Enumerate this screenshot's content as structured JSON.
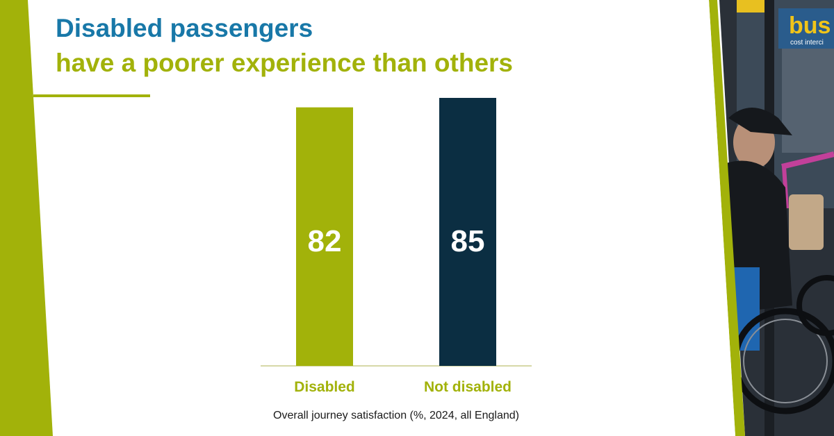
{
  "header": {
    "title": "Disabled passengers",
    "subtitle": "have a poorer experience than others"
  },
  "colors": {
    "accent_green": "#a2b20a",
    "title_blue": "#1878a8",
    "navy": "#0b2e42"
  },
  "photo": {
    "description_icon": "wheelchair-user-photo",
    "sign_text": "bus",
    "sign_subtext": "cost interci"
  },
  "chart_data": {
    "type": "bar",
    "categories": [
      "Disabled",
      "Not disabled"
    ],
    "values": [
      82,
      85
    ],
    "data_labels": [
      "82",
      "85"
    ],
    "colors": [
      "#a2b20a",
      "#0b2e42"
    ],
    "xlabel": "Overall journey satisfaction (%, 2024, all England)",
    "ylabel": "",
    "ylim": [
      0,
      85
    ],
    "grid": false,
    "legend": "none"
  }
}
